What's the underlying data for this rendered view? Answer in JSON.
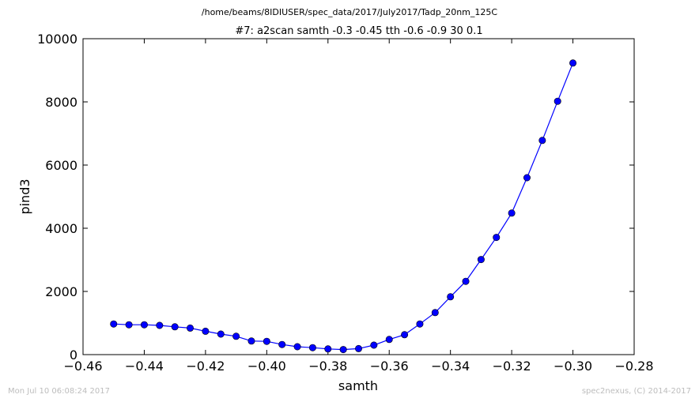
{
  "figure": {
    "path_title": "/home/beams/8IDIUSER/spec_data/2017/July2017/Tadp_20nm_125C",
    "scan_title": "#7: a2scan  samth -0.3 -0.45  tth -0.6 -0.9  30 0.1",
    "footer_left": "Mon Jul 10 06:08:24 2017",
    "footer_right": "spec2nexus, (C) 2014-2017"
  },
  "chart_data": {
    "type": "line",
    "xlabel": "samth",
    "ylabel": "pind3",
    "xlim": [
      -0.46,
      -0.28
    ],
    "ylim": [
      0,
      10000
    ],
    "x_ticks": [
      -0.46,
      -0.44,
      -0.42,
      -0.4,
      -0.38,
      -0.36,
      -0.34,
      -0.32,
      -0.3,
      -0.28
    ],
    "x_tick_labels": [
      "−0.46",
      "−0.44",
      "−0.42",
      "−0.40",
      "−0.38",
      "−0.36",
      "−0.34",
      "−0.32",
      "−0.30",
      "−0.28"
    ],
    "y_ticks": [
      0,
      2000,
      4000,
      6000,
      8000,
      10000
    ],
    "y_tick_labels": [
      "0",
      "2000",
      "4000",
      "6000",
      "8000",
      "10000"
    ],
    "grid": false,
    "series": [
      {
        "color": "#0000ff",
        "marker": "circle",
        "x": [
          -0.45,
          -0.445,
          -0.44,
          -0.435,
          -0.43,
          -0.425,
          -0.42,
          -0.415,
          -0.41,
          -0.405,
          -0.4,
          -0.395,
          -0.39,
          -0.385,
          -0.38,
          -0.375,
          -0.37,
          -0.365,
          -0.36,
          -0.355,
          -0.35,
          -0.345,
          -0.34,
          -0.335,
          -0.33,
          -0.325,
          -0.32,
          -0.315,
          -0.31,
          -0.305,
          -0.3
        ],
        "y": [
          970,
          945,
          945,
          925,
          880,
          840,
          740,
          650,
          580,
          430,
          420,
          320,
          250,
          220,
          180,
          160,
          190,
          300,
          480,
          630,
          970,
          1330,
          1830,
          2320,
          3010,
          3710,
          4480,
          5600,
          6780,
          8020,
          9230
        ]
      }
    ]
  }
}
